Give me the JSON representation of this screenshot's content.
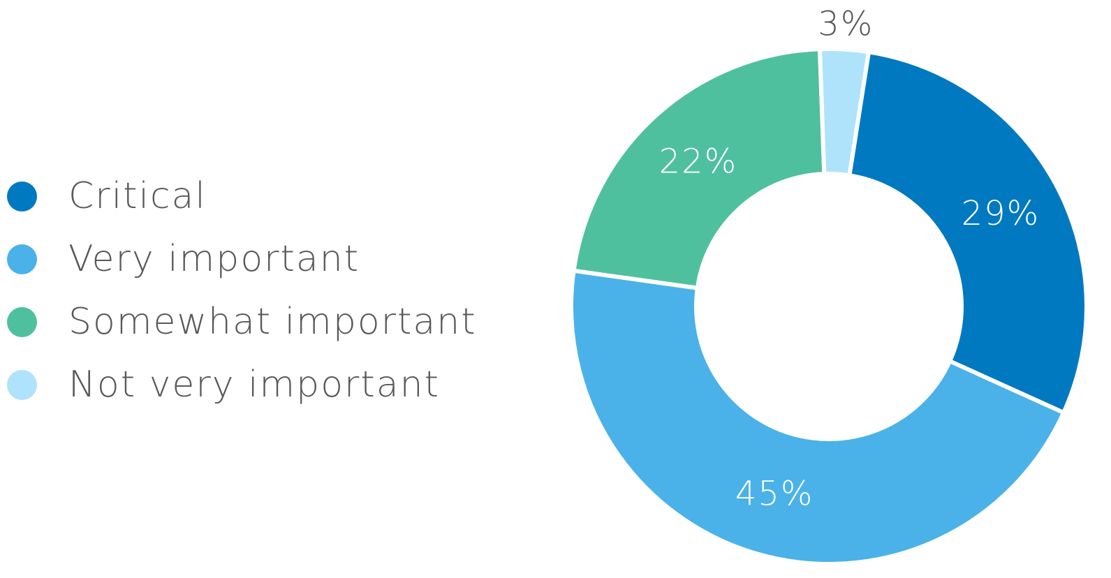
{
  "chart_data": {
    "type": "pie",
    "donut": true,
    "categories": [
      "Critical",
      "Very important",
      "Somewhat important",
      "Not very important"
    ],
    "values": [
      29,
      45,
      22,
      3
    ],
    "labels": [
      "29%",
      "45%",
      "22%",
      "3%"
    ],
    "colors": [
      "#0079c1",
      "#4ab2e8",
      "#4fc09e",
      "#aee3fb"
    ],
    "label_colors": [
      "#ffffff",
      "#ffffff",
      "#ffffff",
      "#58595b"
    ],
    "legend": "left"
  },
  "legend": {
    "items": [
      {
        "label": "Critical",
        "color": "#0079c1"
      },
      {
        "label": "Very important",
        "color": "#4ab2e8"
      },
      {
        "label": "Somewhat important",
        "color": "#4fc09e"
      },
      {
        "label": "Not very important",
        "color": "#aee3fb"
      }
    ]
  }
}
